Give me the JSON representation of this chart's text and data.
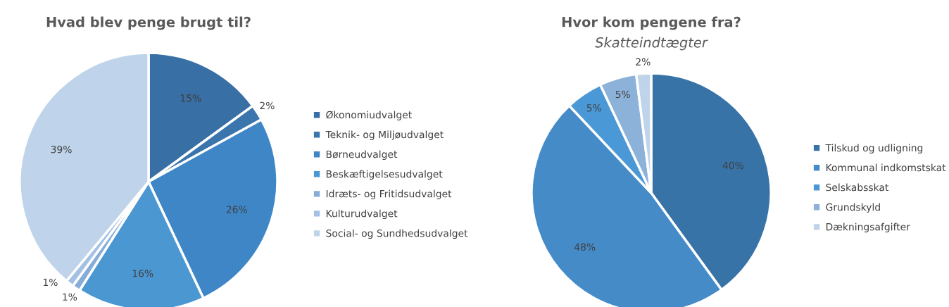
{
  "chart_data": [
    {
      "type": "pie",
      "title": "Hvad blev penge brugt til?",
      "categories": [
        "Økonomiudvalget",
        "Teknik- og Miljøudvalget",
        "Børneudvalget",
        "Beskæftigelsesudvalget",
        "Idræts- og Fritidsudvalget",
        "Kulturudvalget",
        "Social- og Sundhedsudvalget"
      ],
      "values": [
        15,
        2,
        26,
        16,
        1,
        1,
        39
      ],
      "value_labels": [
        "15%",
        "2%",
        "26%",
        "16%",
        "1%",
        "1%",
        "39%"
      ],
      "colors": [
        "#386fa4",
        "#3b75ae",
        "#3e86c6",
        "#4b97d2",
        "#86acd8",
        "#a3c1e4",
        "#bfd3ea"
      ],
      "legend": "right"
    },
    {
      "type": "pie",
      "title": "Hvor kom pengene fra?",
      "subtitle": "Skatteindtægter",
      "categories": [
        "Tilskud og udligning",
        "Kommunal indkomstskat",
        "Selskabsskat",
        "Grundskyld",
        "Dækningsafgifter"
      ],
      "values": [
        40,
        48,
        5,
        5,
        2
      ],
      "value_labels": [
        "40%",
        "48%",
        "5%",
        "5%",
        "2%"
      ],
      "colors": [
        "#3873a8",
        "#448bc8",
        "#4b98d6",
        "#8db2da",
        "#bfd3ea"
      ],
      "legend": "right"
    }
  ]
}
